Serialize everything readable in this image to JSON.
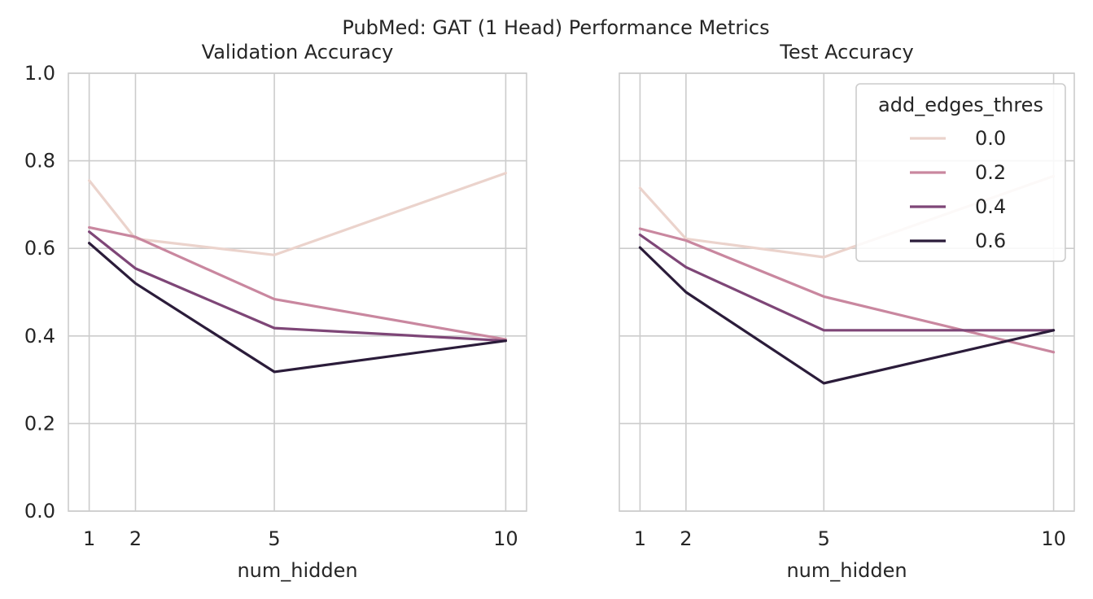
{
  "chart_data": {
    "suptitle": "PubMed: GAT (1 Head) Performance Metrics",
    "type": "line",
    "legend": {
      "title": "add_edges_thres",
      "placement": "top-right",
      "entries": [
        "0.0",
        "0.2",
        "0.4",
        "0.6"
      ]
    },
    "series_colors": [
      "#ebd3cc",
      "#c9879f",
      "#7e4677",
      "#2b1c3a"
    ],
    "x_ticks": [
      1,
      2,
      5,
      10
    ],
    "y_ticks": [
      0.0,
      0.2,
      0.4,
      0.6,
      0.8,
      1.0
    ],
    "y_tick_labels": [
      "0.0",
      "0.2",
      "0.4",
      "0.6",
      "0.8",
      "1.0"
    ],
    "x_tick_labels": [
      "1",
      "2",
      "5",
      "10"
    ],
    "ylim": [
      0,
      1
    ],
    "grid": true,
    "panels": [
      {
        "title": "Validation Accuracy",
        "xlabel": "num_hidden",
        "series": [
          {
            "name": "0.0",
            "x": [
              1,
              2,
              5,
              10
            ],
            "values": [
              0.755,
              0.622,
              0.585,
              0.772
            ]
          },
          {
            "name": "0.2",
            "x": [
              1,
              2,
              5,
              10
            ],
            "values": [
              0.648,
              0.626,
              0.484,
              0.392
            ]
          },
          {
            "name": "0.4",
            "x": [
              1,
              2,
              5,
              10
            ],
            "values": [
              0.638,
              0.554,
              0.418,
              0.389
            ]
          },
          {
            "name": "0.6",
            "x": [
              1,
              2,
              5,
              10
            ],
            "values": [
              0.612,
              0.52,
              0.318,
              0.389
            ]
          }
        ]
      },
      {
        "title": "Test Accuracy",
        "xlabel": "num_hidden",
        "series": [
          {
            "name": "0.0",
            "x": [
              1,
              2,
              5,
              10
            ],
            "values": [
              0.738,
              0.622,
              0.58,
              0.765
            ]
          },
          {
            "name": "0.2",
            "x": [
              1,
              2,
              5,
              10
            ],
            "values": [
              0.645,
              0.618,
              0.49,
              0.363
            ]
          },
          {
            "name": "0.4",
            "x": [
              1,
              2,
              5,
              10
            ],
            "values": [
              0.631,
              0.557,
              0.413,
              0.413
            ]
          },
          {
            "name": "0.6",
            "x": [
              1,
              2,
              5,
              10
            ],
            "values": [
              0.602,
              0.5,
              0.292,
              0.413
            ]
          }
        ]
      }
    ]
  }
}
